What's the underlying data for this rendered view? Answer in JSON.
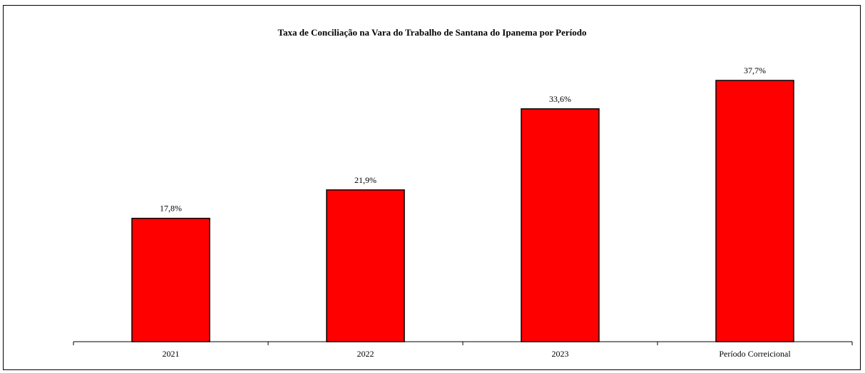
{
  "chart_data": {
    "type": "bar",
    "title": "Taxa de Conciliação na Vara do Trabalho de Santana do Ipanema por Período",
    "categories": [
      "2021",
      "2022",
      "2023",
      "Período Correicional"
    ],
    "values": [
      17.8,
      21.9,
      33.6,
      37.7
    ],
    "value_labels": [
      "17,8%",
      "21,9%",
      "33,6%",
      "37,7%"
    ],
    "xlabel": "",
    "ylabel": "",
    "ylim": [
      0,
      37.7
    ],
    "grid": false,
    "legend": "none",
    "bar_color": "#ff0000",
    "bar_edge_color": "#000000"
  }
}
